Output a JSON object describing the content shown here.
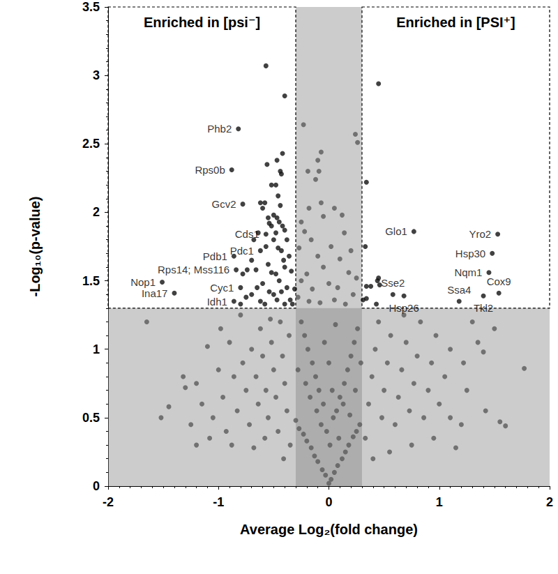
{
  "chart_data": {
    "type": "scatter",
    "x_label": "Average Log₂(fold change)",
    "y_label": "-Log₁₀(p-value)",
    "xlim": [
      -2,
      2
    ],
    "xticks": [
      -2,
      -1,
      0,
      1,
      2
    ],
    "ylim": [
      0,
      3.5
    ],
    "yticks": [
      0,
      0.5,
      1,
      1.5,
      2,
      2.5,
      3,
      3.5
    ],
    "grid": false,
    "shaded_regions": [
      {
        "x": [
          -0.3,
          0.3
        ],
        "y": [
          0,
          3.5
        ]
      },
      {
        "x": [
          -2,
          2
        ],
        "y": [
          0,
          1.3
        ]
      }
    ],
    "boxes": [
      {
        "x": [
          -2,
          -0.3
        ],
        "y": [
          1.3,
          3.5
        ],
        "label": "Enriched in [psi⁻]"
      },
      {
        "x": [
          0.3,
          2
        ],
        "y": [
          1.3,
          3.5
        ],
        "label": "Enriched in [PSI⁺]"
      }
    ],
    "series": [
      {
        "color": "#111111",
        "marker": "circle",
        "points": [
          [
            -0.82,
            2.61,
            "Phb2"
          ],
          [
            -0.88,
            2.31,
            "Rps0b"
          ],
          [
            -0.78,
            2.06,
            "Gcv2"
          ],
          [
            -0.57,
            1.84,
            "Cds1"
          ],
          [
            -0.62,
            1.72,
            "Pdc1"
          ],
          [
            -0.86,
            1.68,
            "Pdb1"
          ],
          [
            -0.84,
            1.58,
            "Rps14; Mss116"
          ],
          [
            -0.8,
            1.45,
            "Cyc1"
          ],
          [
            -0.86,
            1.35,
            "Idh1"
          ],
          [
            -1.51,
            1.49,
            "Nop1"
          ],
          [
            -1.4,
            1.41,
            "Ina17"
          ],
          [
            0.77,
            1.86,
            "Glo1"
          ],
          [
            1.53,
            1.84,
            "Yro2"
          ],
          [
            1.48,
            1.7,
            "Hsp30"
          ],
          [
            1.45,
            1.56,
            "Nqm1"
          ],
          [
            1.54,
            1.41,
            "Cox9"
          ],
          [
            1.4,
            1.39,
            "Tkl2"
          ],
          [
            1.18,
            1.35,
            "Ssa4"
          ],
          [
            0.58,
            1.4,
            "Sse2"
          ],
          [
            0.68,
            1.39,
            "Hsp26"
          ],
          [
            -0.57,
            3.07
          ],
          [
            -0.4,
            2.85
          ],
          [
            -0.47,
            2.38
          ],
          [
            -0.42,
            2.43
          ],
          [
            -0.44,
            2.3
          ],
          [
            -0.43,
            2.28
          ],
          [
            -0.56,
            2.35
          ],
          [
            -0.48,
            2.2
          ],
          [
            -0.52,
            2.2
          ],
          [
            -0.62,
            2.07
          ],
          [
            -0.58,
            2.07
          ],
          [
            -0.6,
            2.03
          ],
          [
            -0.46,
            2.12
          ],
          [
            -0.44,
            2.05
          ],
          [
            -0.5,
            1.98
          ],
          [
            -0.54,
            1.92
          ],
          [
            -0.55,
            1.96
          ],
          [
            -0.52,
            1.9
          ],
          [
            -0.47,
            1.96
          ],
          [
            -0.45,
            1.93
          ],
          [
            -0.42,
            1.9
          ],
          [
            -0.38,
            1.8
          ],
          [
            -0.4,
            1.87
          ],
          [
            -0.48,
            1.85
          ],
          [
            -0.5,
            1.8
          ],
          [
            -0.64,
            1.85
          ],
          [
            -0.68,
            1.8
          ],
          [
            -0.46,
            1.74
          ],
          [
            -0.43,
            1.72
          ],
          [
            -0.41,
            1.65
          ],
          [
            -0.4,
            1.6
          ],
          [
            -0.36,
            1.68
          ],
          [
            -0.34,
            1.57
          ],
          [
            -0.7,
            1.65
          ],
          [
            -0.74,
            1.58
          ],
          [
            -0.78,
            1.55
          ],
          [
            -0.55,
            1.62
          ],
          [
            -0.52,
            1.56
          ],
          [
            -0.48,
            1.55
          ],
          [
            -0.45,
            1.5
          ],
          [
            -0.6,
            1.48
          ],
          [
            -0.65,
            1.45
          ],
          [
            -0.7,
            1.4
          ],
          [
            -0.75,
            1.38
          ],
          [
            -0.54,
            1.42
          ],
          [
            -0.5,
            1.4
          ],
          [
            -0.43,
            1.42
          ],
          [
            -0.38,
            1.45
          ],
          [
            -0.35,
            1.36
          ],
          [
            -0.33,
            1.33
          ],
          [
            -0.62,
            1.35
          ],
          [
            -0.58,
            1.33
          ],
          [
            -0.8,
            1.33
          ],
          [
            -0.47,
            1.36
          ],
          [
            -0.4,
            1.33
          ],
          [
            -0.31,
            1.44
          ],
          [
            -0.66,
            1.58
          ],
          [
            -0.57,
            1.75
          ],
          [
            0.34,
            2.22
          ],
          [
            0.45,
            2.94
          ],
          [
            0.33,
            1.75
          ],
          [
            0.34,
            1.46
          ],
          [
            0.38,
            1.46
          ],
          [
            0.46,
            1.47
          ],
          [
            0.45,
            1.52
          ],
          [
            0.44,
            1.5
          ],
          [
            0.43,
            1.33
          ],
          [
            0.34,
            1.37
          ],
          [
            0.31,
            1.36
          ]
        ]
      },
      {
        "color": "#5a5a5a",
        "marker": "circle",
        "points": [
          [
            -0.23,
            2.64
          ],
          [
            0.24,
            2.57
          ],
          [
            0.26,
            2.51
          ],
          [
            -0.07,
            2.44
          ],
          [
            -0.1,
            2.38
          ],
          [
            -0.09,
            2.3
          ],
          [
            -0.19,
            2.3
          ],
          [
            -0.12,
            2.24
          ],
          [
            0.05,
            2.03
          ],
          [
            -0.07,
            2.07
          ],
          [
            -0.18,
            2.03
          ],
          [
            -0.05,
            1.97
          ],
          [
            -0.25,
            1.93
          ],
          [
            0.12,
            1.98
          ],
          [
            0.14,
            1.85
          ],
          [
            -0.22,
            1.86
          ],
          [
            -0.16,
            1.8
          ],
          [
            0.02,
            1.75
          ],
          [
            -0.27,
            1.74
          ],
          [
            0.2,
            1.72
          ],
          [
            -0.1,
            1.68
          ],
          [
            0.1,
            1.66
          ],
          [
            -0.05,
            1.6
          ],
          [
            0.18,
            1.56
          ],
          [
            -0.2,
            1.55
          ],
          [
            0.25,
            1.52
          ],
          [
            -0.25,
            1.5
          ],
          [
            0,
            1.48
          ],
          [
            0.08,
            1.45
          ],
          [
            -0.15,
            1.44
          ],
          [
            0.22,
            1.4
          ],
          [
            -0.28,
            1.38
          ],
          [
            0.05,
            1.36
          ],
          [
            -0.08,
            1.34
          ],
          [
            0.15,
            1.33
          ],
          [
            -0.18,
            1.35
          ],
          [
            0,
            0.02
          ],
          [
            0.02,
            0.05
          ],
          [
            -0.03,
            0.08
          ],
          [
            0.05,
            0.1
          ],
          [
            -0.06,
            0.12
          ],
          [
            0.08,
            0.15
          ],
          [
            -0.1,
            0.18
          ],
          [
            0.12,
            0.2
          ],
          [
            -0.13,
            0.22
          ],
          [
            0.15,
            0.25
          ],
          [
            -0.16,
            0.28
          ],
          [
            0.18,
            0.3
          ],
          [
            -0.2,
            0.33
          ],
          [
            0.22,
            0.36
          ],
          [
            -0.23,
            0.38
          ],
          [
            0.25,
            0.4
          ],
          [
            -0.27,
            0.42
          ],
          [
            0.28,
            0.45
          ],
          [
            -0.3,
            0.48
          ],
          [
            0.01,
            0.3
          ],
          [
            -0.02,
            0.4
          ],
          [
            0.04,
            0.5
          ],
          [
            -0.05,
            0.6
          ],
          [
            0.07,
            0.55
          ],
          [
            -0.09,
            0.7
          ],
          [
            0.1,
            0.65
          ],
          [
            -0.12,
            0.8
          ],
          [
            0.14,
            0.75
          ],
          [
            -0.15,
            0.9
          ],
          [
            0.17,
            0.85
          ],
          [
            -0.19,
            1
          ],
          [
            0.2,
            0.95
          ],
          [
            -0.22,
            1.1
          ],
          [
            0.23,
            1.05
          ],
          [
            -0.25,
            1.2
          ],
          [
            0.26,
            1.15
          ],
          [
            0,
            0.9
          ],
          [
            -0.04,
            1.05
          ],
          [
            0.06,
            1.18
          ],
          [
            0.03,
            0.7
          ],
          [
            -0.07,
            0.45
          ],
          [
            0.09,
            0.35
          ],
          [
            -0.11,
            0.55
          ],
          [
            0.13,
            0.6
          ],
          [
            -0.17,
            0.65
          ],
          [
            0.19,
            0.52
          ],
          [
            -0.21,
            0.75
          ],
          [
            0.24,
            0.7
          ],
          [
            -0.28,
            0.85
          ],
          [
            0.29,
            0.9
          ],
          [
            -0.35,
            0.3
          ],
          [
            -0.38,
            0.55
          ],
          [
            -0.4,
            0.75
          ],
          [
            -0.42,
            0.95
          ],
          [
            -0.44,
            1.2
          ],
          [
            -0.46,
            0.4
          ],
          [
            -0.48,
            0.65
          ],
          [
            -0.5,
            0.85
          ],
          [
            -0.52,
            1.05
          ],
          [
            -0.55,
            0.5
          ],
          [
            -0.57,
            0.7
          ],
          [
            -0.6,
            0.95
          ],
          [
            -0.62,
            1.15
          ],
          [
            -0.64,
            0.6
          ],
          [
            -0.66,
            0.8
          ],
          [
            -0.7,
            1
          ],
          [
            -0.72,
            0.45
          ],
          [
            -0.75,
            0.7
          ],
          [
            -0.78,
            0.9
          ],
          [
            -0.8,
            1.25
          ],
          [
            -0.83,
            0.55
          ],
          [
            -0.86,
            0.8
          ],
          [
            -0.9,
            1.05
          ],
          [
            -0.93,
            0.4
          ],
          [
            -0.96,
            0.65
          ],
          [
            -1,
            0.85
          ],
          [
            -1.05,
            0.5
          ],
          [
            -1.1,
            1.02
          ],
          [
            -1.15,
            0.6
          ],
          [
            -1.2,
            0.75
          ],
          [
            -1.25,
            0.45
          ],
          [
            -1.3,
            0.72
          ],
          [
            -1.32,
            0.8
          ],
          [
            -1.45,
            0.58
          ],
          [
            -1.52,
            0.5
          ],
          [
            -1.65,
            1.2
          ],
          [
            -1.2,
            0.3
          ],
          [
            -0.98,
            1.15
          ],
          [
            -1.08,
            0.35
          ],
          [
            -0.36,
            1.1
          ],
          [
            -0.41,
            0.2
          ],
          [
            -0.58,
            0.35
          ],
          [
            -0.68,
            0.28
          ],
          [
            -0.88,
            0.3
          ],
          [
            -0.53,
            1.22
          ],
          [
            0.33,
            0.35
          ],
          [
            0.36,
            0.6
          ],
          [
            0.39,
            0.8
          ],
          [
            0.42,
            1
          ],
          [
            0.45,
            1.2
          ],
          [
            0.48,
            0.5
          ],
          [
            0.5,
            0.7
          ],
          [
            0.53,
            0.9
          ],
          [
            0.56,
            1.1
          ],
          [
            0.6,
            0.45
          ],
          [
            0.63,
            0.65
          ],
          [
            0.66,
            0.85
          ],
          [
            0.7,
            1.05
          ],
          [
            0.73,
            0.55
          ],
          [
            0.77,
            0.75
          ],
          [
            0.8,
            0.95
          ],
          [
            0.83,
            1.2
          ],
          [
            0.86,
            0.5
          ],
          [
            0.9,
            0.7
          ],
          [
            0.93,
            0.9
          ],
          [
            0.97,
            1.1
          ],
          [
            1,
            0.6
          ],
          [
            1.05,
            0.8
          ],
          [
            1.1,
            0.5
          ],
          [
            1.15,
            0.28
          ],
          [
            1.2,
            0.45
          ],
          [
            1.25,
            0.7
          ],
          [
            1.3,
            1.2
          ],
          [
            1.35,
            1.05
          ],
          [
            1.4,
            0.98
          ],
          [
            1.5,
            1.15
          ],
          [
            1.55,
            0.47
          ],
          [
            1.6,
            0.44
          ],
          [
            1.77,
            0.86
          ],
          [
            1.1,
            1
          ],
          [
            0.95,
            0.35
          ],
          [
            0.75,
            0.3
          ],
          [
            0.55,
            0.25
          ],
          [
            0.4,
            0.2
          ],
          [
            1.42,
            0.55
          ],
          [
            0.68,
            1.25
          ],
          [
            1.22,
            0.9
          ]
        ]
      }
    ]
  }
}
